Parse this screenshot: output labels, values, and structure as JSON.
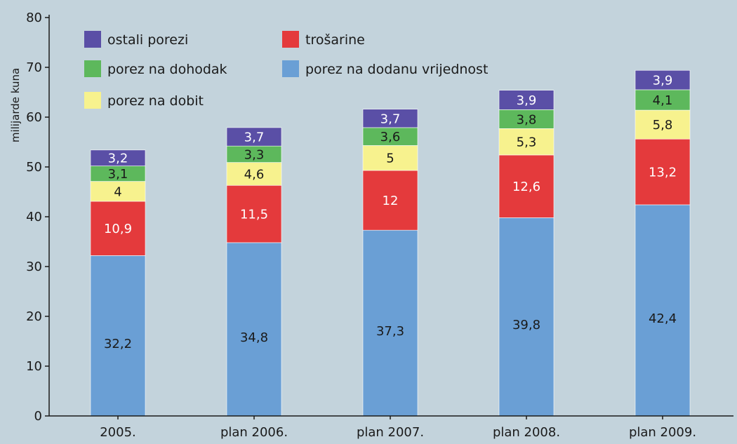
{
  "chart_data": {
    "type": "bar",
    "stacked": true,
    "title": "",
    "ylabel": "milijarde kuna",
    "xlabel": "",
    "ylim": [
      0,
      80
    ],
    "yticks": [
      0,
      10,
      20,
      30,
      40,
      50,
      60,
      70,
      80
    ],
    "grid": false,
    "categories": [
      "2005.",
      "plan 2006.",
      "plan 2007.",
      "plan 2008.",
      "plan 2009."
    ],
    "series": [
      {
        "name": "porez na dodanu vrijednost",
        "color": "#6a9fd5",
        "label_color": "#1a1a1a",
        "values": [
          32.2,
          34.8,
          37.3,
          39.8,
          42.4
        ],
        "labels": [
          "32,2",
          "34,8",
          "37,3",
          "39,8",
          "42,4"
        ]
      },
      {
        "name": "trošarine",
        "color": "#e43a3c",
        "label_color": "#ffffff",
        "values": [
          10.9,
          11.5,
          12,
          12.6,
          13.2
        ],
        "labels": [
          "10,9",
          "11,5",
          "12",
          "12,6",
          "13,2"
        ]
      },
      {
        "name": "porez na dobit",
        "color": "#f7f28e",
        "label_color": "#1a1a1a",
        "values": [
          4,
          4.6,
          5,
          5.3,
          5.8
        ],
        "labels": [
          "4",
          "4,6",
          "5",
          "5,3",
          "5,8"
        ]
      },
      {
        "name": "porez na dohodak",
        "color": "#5db85c",
        "label_color": "#1a1a1a",
        "values": [
          3.1,
          3.3,
          3.6,
          3.8,
          4.1
        ],
        "labels": [
          "3,1",
          "3,3",
          "3,6",
          "3,8",
          "4,1"
        ]
      },
      {
        "name": "ostali porezi",
        "color": "#5a4fa6",
        "label_color": "#ffffff",
        "values": [
          3.2,
          3.7,
          3.7,
          3.9,
          3.9
        ],
        "labels": [
          "3,2",
          "3,7",
          "3,7",
          "3,9",
          "3,9"
        ]
      }
    ],
    "legend": {
      "placement": "top-left",
      "order": [
        "ostali porezi",
        "trošarine",
        "porez na dohodak",
        "porez na dodanu vrijednost",
        "porez na dobit"
      ]
    }
  }
}
